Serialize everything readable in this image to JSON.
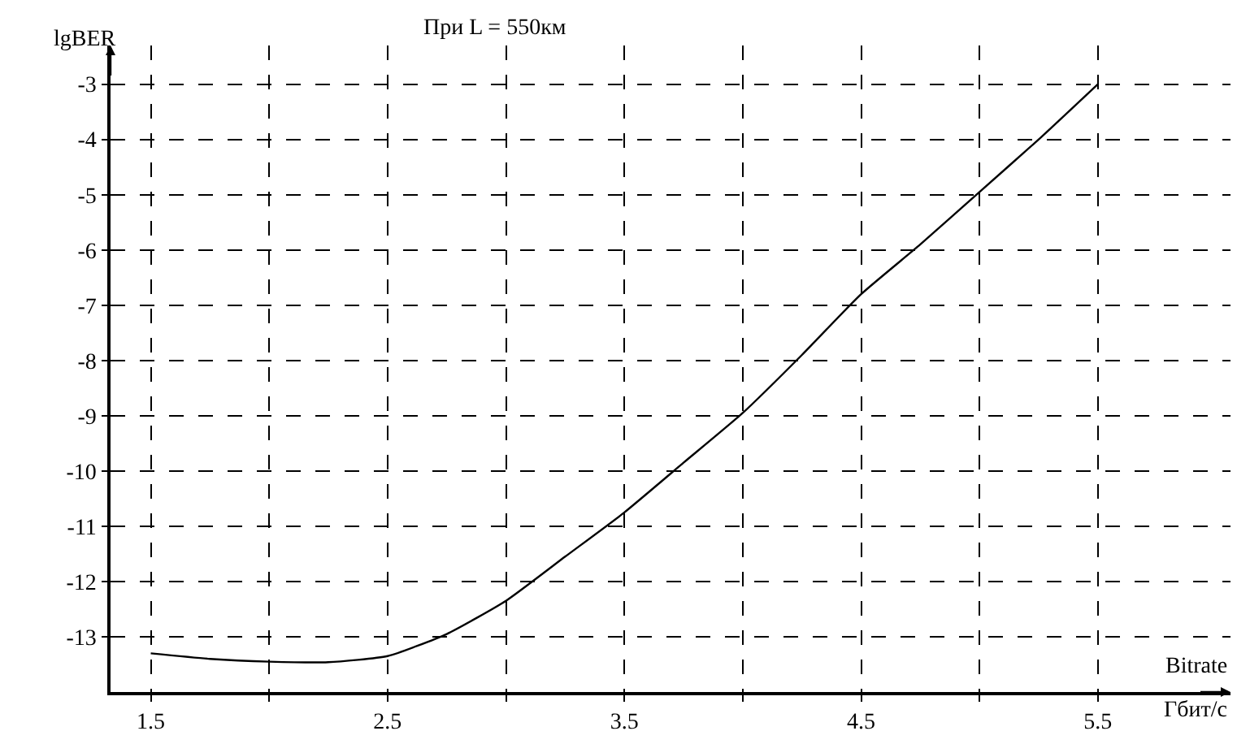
{
  "chart_data": {
    "type": "line",
    "title": "При L = 550км",
    "xlabel": "Bitrate",
    "ylabel": "lgBER",
    "annotations": [
      "Гбит/с"
    ],
    "x": [
      1.5,
      1.75,
      2.0,
      2.25,
      2.5,
      2.75,
      3.0,
      3.25,
      3.5,
      3.75,
      4.0,
      4.25,
      4.5,
      4.75,
      5.0,
      5.25,
      5.5
    ],
    "series": [
      {
        "color": "#000000",
        "values": [
          -13.3,
          -13.4,
          -13.45,
          -13.46,
          -13.35,
          -12.95,
          -12.35,
          -11.55,
          -10.75,
          -9.85,
          -8.95,
          -7.9,
          -6.8,
          -5.9,
          -4.95,
          -4.0,
          -3.0
        ]
      }
    ],
    "xlim": [
      1.33,
      6.06
    ],
    "ylim": [
      -14,
      -2.3
    ],
    "xticks": [
      1.5,
      {
        "value": 2,
        "label": null
      },
      2.5,
      {
        "value": 3,
        "label": null
      },
      3.5,
      {
        "value": 4,
        "label": null
      },
      4.5,
      {
        "value": 5,
        "label": null
      },
      5.5
    ],
    "yticks": [
      -3,
      -4,
      -5,
      -6,
      -7,
      -8,
      -9,
      -10,
      -11,
      -12,
      -13
    ],
    "grid": true,
    "marker": "none",
    "line_style": "solid"
  }
}
